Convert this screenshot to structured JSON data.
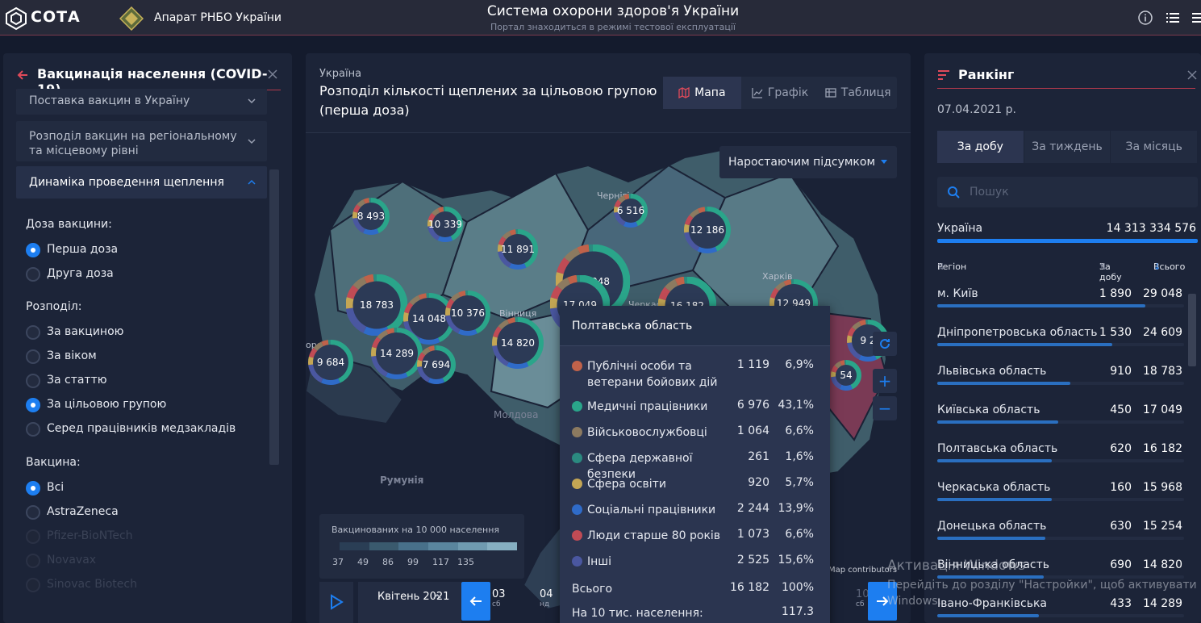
{
  "header": {
    "brand": "СОТА",
    "org": "Апарат РНБО України",
    "title": "Система охорони здоров'я України",
    "subtitle": "Портал знаходиться в режимі тестової експлуатації",
    "icons": [
      "info-icon",
      "list-icon",
      "menu-icon"
    ]
  },
  "left": {
    "title": "Вакцинація населення (COVID-19)",
    "accordions": [
      {
        "label": "Поставка вакцин в Україну"
      },
      {
        "label": "Розподіл вакцин на регіональному та місцевому рівні"
      },
      {
        "label": "Динаміка проведення щеплення"
      }
    ],
    "dose_title": "Доза вакцини:",
    "doses": [
      {
        "label": "Перша доза",
        "checked": true
      },
      {
        "label": "Друга доза",
        "checked": false
      }
    ],
    "distribution_title": "Розподіл:",
    "distributions": [
      {
        "label": "За вакциною",
        "checked": false
      },
      {
        "label": "За віком",
        "checked": false
      },
      {
        "label": "За статтю",
        "checked": false
      },
      {
        "label": "За цільовою групою",
        "checked": true
      },
      {
        "label": "Серед працівників медзакладів",
        "checked": false
      }
    ],
    "vaccine_title": "Вакцина:",
    "vaccines": [
      {
        "label": "Всі",
        "checked": true
      },
      {
        "label": "AstraZeneca",
        "checked": false
      },
      {
        "label": "Pfizer-BioNTech",
        "checked": false,
        "dim": true
      },
      {
        "label": "Novavax",
        "checked": false,
        "dim": true
      },
      {
        "label": "Sinovac Biotech",
        "checked": false,
        "dim": true
      }
    ]
  },
  "center": {
    "pretitle": "Україна",
    "title": "Розподіл кількості щеплених за цільовою групою (перша доза)",
    "tabs": [
      {
        "label": "Мапа",
        "active": true
      },
      {
        "label": "Графік",
        "active": false
      },
      {
        "label": "Таблиця",
        "active": false
      }
    ],
    "mode": "Наростаючим підсумком",
    "clusters": [
      "8 493",
      "10 339",
      "11 891",
      "29 048",
      "6 516",
      "12 186",
      "18 783",
      "14 048",
      "10 376",
      "17 049",
      "16 182",
      "12 949",
      "14 820",
      "9 684",
      "14 289",
      "7 694",
      "9 2",
      "54"
    ],
    "map_labels": [
      "Чернігів",
      "Харків",
      "Черкаси",
      "Молдова",
      "Румунія",
      "Вінниця",
      "Map contributors",
      "ород"
    ],
    "legend": {
      "title": "Вакцинованих на 10 000 населення",
      "ticks": [
        "37",
        "49",
        "86",
        "99",
        "117",
        "135"
      ],
      "colors": [
        "#2a3e55",
        "#3a5a6e",
        "#48708a",
        "#5a859e",
        "#6f9ab0",
        "#86afc2"
      ]
    },
    "timeline": {
      "month": "Квітень 2021",
      "days": [
        {
          "d": "03",
          "w": "сб"
        },
        {
          "d": "04",
          "w": "нд"
        },
        {
          "d": "10",
          "w": "сб"
        }
      ]
    },
    "popup": {
      "region": "Полтавська область",
      "rows": [
        {
          "label": "Публічні особи та ветерани бойових дій",
          "value": "1 119",
          "pct": "6,9%",
          "color": "#c0624a"
        },
        {
          "label": "Медичні працівники",
          "value": "6 976",
          "pct": "43,1%",
          "color": "#2aa58a"
        },
        {
          "label": "Військовослужбовці",
          "value": "1 064",
          "pct": "6,6%",
          "color": "#8c7a60"
        },
        {
          "label": "Сфера державної безпеки",
          "value": "261",
          "pct": "1,6%",
          "color": "#2b8a80"
        },
        {
          "label": "Сфера освіти",
          "value": "920",
          "pct": "5,7%",
          "color": "#c4a654"
        },
        {
          "label": "Соціальні працівники",
          "value": "2 244",
          "pct": "13,9%",
          "color": "#2f6bc8"
        },
        {
          "label": "Люди старше 80 років",
          "value": "1 073",
          "pct": "6,6%",
          "color": "#c04b55"
        },
        {
          "label": "Інші",
          "value": "2 525",
          "pct": "15,6%",
          "color": "#4a57a0"
        }
      ],
      "total_label": "Всього",
      "total_value": "16 182",
      "total_pct": "100%",
      "per10k_label": "На 10 тис. населення:",
      "per10k_value": "117.3"
    }
  },
  "right": {
    "title": "Ранкінг",
    "date": "07.04.2021 р.",
    "segments": [
      {
        "label": "За добу",
        "active": true
      },
      {
        "label": "За тиждень",
        "active": false
      },
      {
        "label": "За місяць",
        "active": false
      }
    ],
    "search_placeholder": "Пошук",
    "ukraine_label": "Україна",
    "ukraine_value": "14 313 334 576",
    "col_region": "Регіон",
    "col_day": "За добу",
    "col_total": "Всього",
    "rows": [
      {
        "region": "м. Київ",
        "day": "1 890",
        "total": "29 048",
        "bar": 1.0
      },
      {
        "region": "Дніпропетровська область",
        "day": "1 530",
        "total": "24 609",
        "bar": 0.84
      },
      {
        "region": "Львівська область",
        "day": "910",
        "total": "18 783",
        "bar": 0.64
      },
      {
        "region": "Київська область",
        "day": "450",
        "total": "17 049",
        "bar": 0.58
      },
      {
        "region": "Полтавська область",
        "day": "620",
        "total": "16 182",
        "bar": 0.55
      },
      {
        "region": "Черкаська область",
        "day": "160",
        "total": "15 968",
        "bar": 0.55
      },
      {
        "region": "Донецька область",
        "day": "630",
        "total": "15 254",
        "bar": 0.52
      },
      {
        "region": "Вінницька область",
        "day": "690",
        "total": "14 820",
        "bar": 0.51
      },
      {
        "region": "Івано-Франківська",
        "day": "433",
        "total": "14 289",
        "bar": 0.49
      }
    ]
  },
  "watermark": {
    "line1": "Активація Windows",
    "line2": "Перейдіть до розділу \"Настройки\", щоб активувати",
    "line3": "Windows."
  }
}
